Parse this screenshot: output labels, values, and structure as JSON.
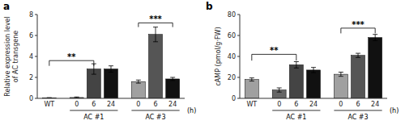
{
  "chart_data": [
    {
      "type": "bar",
      "title": "a",
      "y_label": "Relative expression level\nof AC transgene",
      "categories": [
        "WT",
        "0",
        "6",
        "24",
        "0",
        "6",
        "24"
      ],
      "values": [
        0.05,
        0.08,
        2.8,
        2.8,
        1.6,
        6.1,
        1.85
      ],
      "errors": [
        0.02,
        0.05,
        0.5,
        0.3,
        0.15,
        0.7,
        0.15
      ],
      "colors": [
        "#a0a0a0",
        "#666666",
        "#444444",
        "#111111",
        "#a0a0a0",
        "#555555",
        "#111111"
      ],
      "ylim": [
        0,
        8
      ],
      "yticks": [
        0,
        2,
        4,
        6,
        8
      ],
      "grid": false,
      "annotations": [
        {
          "type": "bracket",
          "text": "**",
          "from": 0,
          "to": 2,
          "y": 3.6,
          "y_end": 3.1
        },
        {
          "type": "bracket",
          "text": "***",
          "from": 4,
          "to": 6,
          "y": 7.2,
          "y_end": 6.8
        },
        {
          "type": "group",
          "text": "AC #1",
          "from": 1,
          "to": 3
        },
        {
          "type": "group",
          "text": "AC #3",
          "from": 4,
          "to": 6
        },
        {
          "type": "note",
          "text": "(h)"
        }
      ]
    },
    {
      "type": "bar",
      "title": "b",
      "y_label": "cAMP (pmol/g·FW)",
      "categories": [
        "WT",
        "0",
        "6",
        "24",
        "0",
        "6",
        "24"
      ],
      "values": [
        18,
        8,
        32,
        27,
        23,
        41,
        58
      ],
      "errors": [
        1.5,
        2.0,
        3.0,
        2.5,
        2.0,
        2.0,
        3.0
      ],
      "colors": [
        "#a0a0a0",
        "#666666",
        "#444444",
        "#111111",
        "#a0a0a0",
        "#555555",
        "#111111"
      ],
      "ylim": [
        0,
        80
      ],
      "yticks": [
        0,
        20,
        40,
        60,
        80
      ],
      "grid": false,
      "annotations": [
        {
          "type": "bracket",
          "text": "**",
          "from": 0,
          "to": 2,
          "y": 42,
          "y_end": 36
        },
        {
          "type": "bracket",
          "text": "***",
          "from": 4,
          "to": 6,
          "y": 67,
          "y_end": 62
        },
        {
          "type": "group",
          "text": "AC #1",
          "from": 1,
          "to": 3
        },
        {
          "type": "group",
          "text": "AC #3",
          "from": 4,
          "to": 6
        },
        {
          "type": "note",
          "text": "(h)"
        }
      ]
    }
  ]
}
